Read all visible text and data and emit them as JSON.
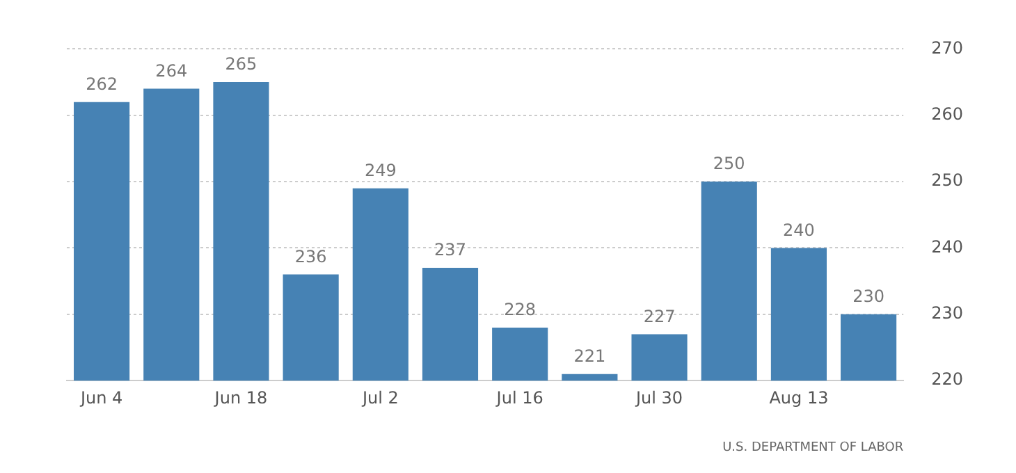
{
  "chart_data": {
    "type": "bar",
    "categories": [
      "Jun 4",
      null,
      "Jun 18",
      null,
      "Jul 2",
      null,
      "Jul 16",
      null,
      "Jul 30",
      null,
      "Aug 13",
      null
    ],
    "values": [
      262,
      264,
      265,
      236,
      249,
      237,
      228,
      221,
      227,
      250,
      240,
      230
    ],
    "color": "#4682b4",
    "ylim": [
      220,
      270
    ],
    "yticks": [
      220,
      230,
      240,
      250,
      260,
      270
    ],
    "grid": "y",
    "data_labels": true,
    "legend": false,
    "annotations": [
      "U.S. DEPARTMENT OF LABOR"
    ]
  }
}
